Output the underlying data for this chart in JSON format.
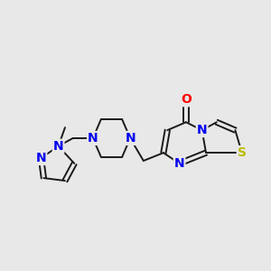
{
  "background_color": "#e8e8e8",
  "bond_color": "#1a1a1a",
  "bond_width": 1.4,
  "atom_colors": {
    "N": "#0000ee",
    "O": "#ff0000",
    "S": "#bbbb00",
    "C": "#1a1a1a"
  },
  "figsize": [
    3.0,
    3.0
  ],
  "dpi": 100,
  "xlim": [
    0,
    10
  ],
  "ylim": [
    0,
    10
  ]
}
